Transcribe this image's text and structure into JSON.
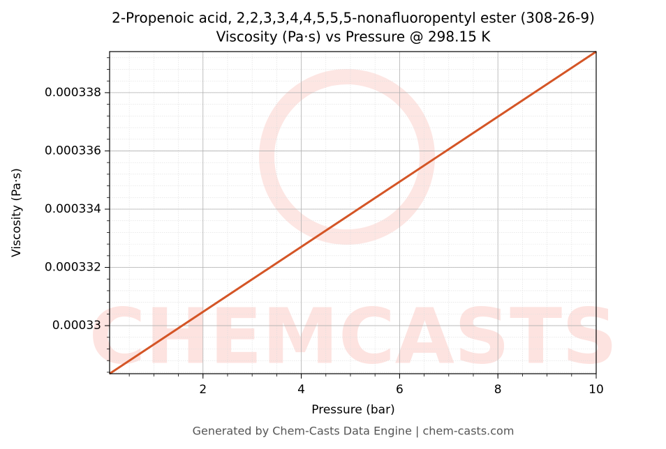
{
  "chart_data": {
    "type": "line",
    "title": "2-Propenoic acid, 2,2,3,3,4,4,5,5,5-nonafluoropentyl ester (308-26-9)",
    "subtitle": "Viscosity (Pa·s) vs Pressure @ 298.15 K",
    "x_label": "Pressure (bar)",
    "y_label": "Viscosity (Pa·s)",
    "watermark": "CHEMCASTS",
    "footer": "Generated by Chem-Casts Data Engine | chem-casts.com",
    "x": [
      0.1,
      10
    ],
    "series": [
      {
        "name": "Viscosity",
        "color": "#d45526",
        "values": [
          0.00032835,
          0.00033941
        ]
      }
    ],
    "xlim": [
      0.1,
      10
    ],
    "xticks": [
      2,
      4,
      6,
      8,
      10
    ],
    "ylim": [
      0.00032835,
      0.00033941
    ],
    "yticks": [
      0.00033,
      0.000332,
      0.000334,
      0.000336,
      0.000338
    ],
    "grid": true
  }
}
